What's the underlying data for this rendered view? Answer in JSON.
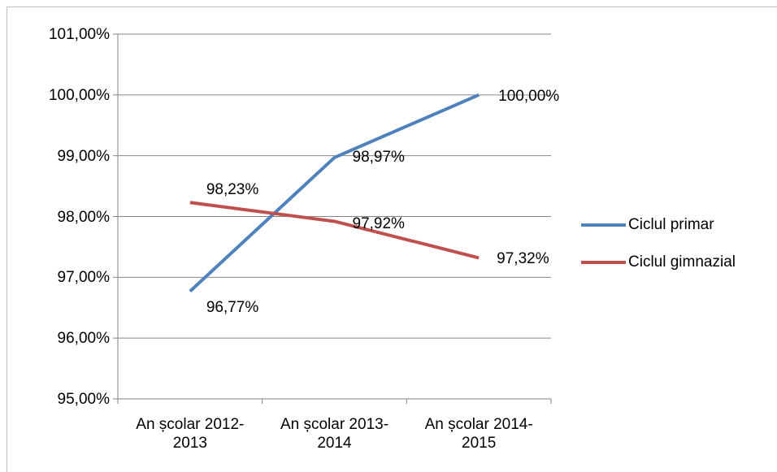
{
  "chart_data": {
    "type": "line",
    "categories": [
      "An școlar 2012-2013",
      "An școlar 2013-2014",
      "An școlar 2014-2015"
    ],
    "series": [
      {
        "name": "Ciclul primar",
        "color": "#4f81bd",
        "values": [
          96.77,
          98.97,
          100.0
        ],
        "value_labels": [
          "96,77%",
          "98,97%",
          "100,00%"
        ]
      },
      {
        "name": "Ciclul gimnazial",
        "color": "#c0504d",
        "values": [
          98.23,
          97.92,
          97.32
        ],
        "value_labels": [
          "98,23%",
          "97,92%",
          "97,32%"
        ]
      }
    ],
    "ylim": [
      95,
      101
    ],
    "yticks": [
      {
        "value": 95,
        "label": "95,00%"
      },
      {
        "value": 96,
        "label": "96,00%"
      },
      {
        "value": 97,
        "label": "97,00%"
      },
      {
        "value": 98,
        "label": "98,00%"
      },
      {
        "value": 99,
        "label": "99,00%"
      },
      {
        "value": 100,
        "label": "100,00%"
      },
      {
        "value": 101,
        "label": "101,00%"
      }
    ],
    "grid": true,
    "legend": "right"
  }
}
